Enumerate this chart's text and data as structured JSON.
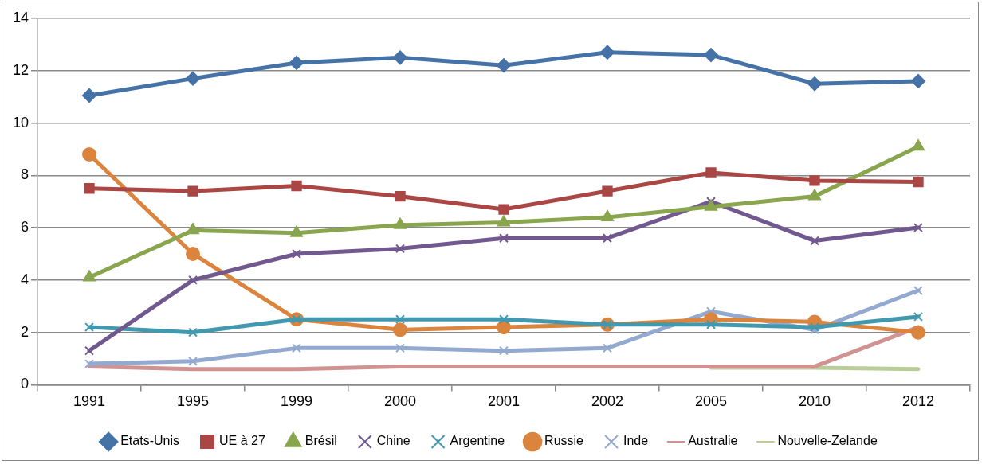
{
  "chart_data": {
    "type": "line",
    "categories": [
      "1991",
      "1995",
      "1999",
      "2000",
      "2001",
      "2002",
      "2005",
      "2010",
      "2012"
    ],
    "ylim": [
      0,
      14
    ],
    "yticks": [
      0,
      2,
      4,
      6,
      8,
      10,
      12,
      14
    ],
    "grid": "y",
    "legend": "bottom",
    "series": [
      {
        "name": "Etats-Unis",
        "color": "#4572a7",
        "marker": "diamond",
        "values": [
          11.05,
          11.7,
          12.3,
          12.5,
          12.2,
          12.7,
          12.6,
          11.5,
          11.6
        ]
      },
      {
        "name": "UE à 27",
        "color": "#aa4643",
        "marker": "square",
        "values": [
          7.5,
          7.4,
          7.6,
          7.2,
          6.7,
          7.4,
          8.1,
          7.8,
          7.75
        ]
      },
      {
        "name": "Brésil",
        "color": "#89a54e",
        "marker": "triangle",
        "values": [
          4.1,
          5.9,
          5.8,
          6.1,
          6.2,
          6.4,
          6.8,
          7.2,
          9.1
        ]
      },
      {
        "name": "Chine",
        "color": "#71588f",
        "marker": "cross",
        "values": [
          1.3,
          4.0,
          5.0,
          5.2,
          5.6,
          5.6,
          7.0,
          5.5,
          6.0
        ]
      },
      {
        "name": "Argentine",
        "color": "#4198af",
        "marker": "cross",
        "values": [
          2.2,
          2.0,
          2.5,
          2.5,
          2.5,
          2.3,
          2.3,
          2.2,
          2.6
        ]
      },
      {
        "name": "Russie",
        "color": "#db843d",
        "marker": "circle",
        "values": [
          8.8,
          5.0,
          2.5,
          2.1,
          2.2,
          2.3,
          2.5,
          2.4,
          2.0
        ]
      },
      {
        "name": "Inde",
        "color": "#93a9cf",
        "marker": "cross",
        "values": [
          0.8,
          0.9,
          1.4,
          1.4,
          1.3,
          1.4,
          2.8,
          2.1,
          3.6
        ]
      },
      {
        "name": "Australie",
        "color": "#d19392",
        "marker": "none",
        "values": [
          0.7,
          0.6,
          0.6,
          0.7,
          0.7,
          0.7,
          0.7,
          0.7,
          2.2
        ]
      },
      {
        "name": "Nouvelle-Zelande",
        "color": "#b9cd96",
        "marker": "none",
        "values": [
          null,
          null,
          null,
          null,
          null,
          null,
          0.65,
          0.65,
          0.6
        ]
      }
    ]
  }
}
